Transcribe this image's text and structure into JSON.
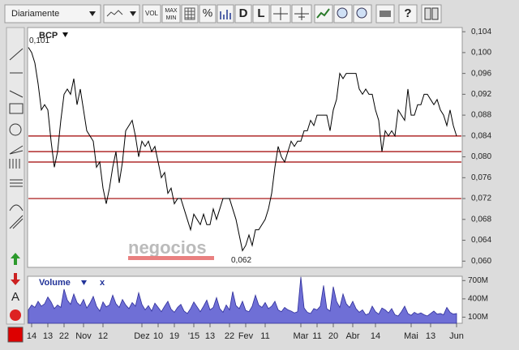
{
  "toolbar": {
    "period": "Diariamente",
    "vol": "VOL",
    "max": "MAX",
    "min": "MIN",
    "percent": "%",
    "d": "D",
    "l": "L",
    "help": "?"
  },
  "left_tools": {
    "text": "A"
  },
  "watermark": "negocios",
  "chart_data": [
    {
      "type": "line",
      "name": "BCP",
      "color": "#000000",
      "categories": [
        null,
        "14",
        null,
        null,
        null,
        null,
        "13",
        null,
        null,
        null,
        null,
        "22",
        null,
        null,
        null,
        null,
        null,
        "Nov",
        null,
        null,
        null,
        null,
        null,
        "12",
        null,
        null,
        null,
        null,
        null,
        null,
        null,
        null,
        null,
        null,
        null,
        "Dez",
        null,
        null,
        null,
        null,
        "10",
        null,
        null,
        null,
        null,
        "19",
        null,
        null,
        null,
        null,
        null,
        "'15",
        null,
        null,
        null,
        null,
        "13",
        null,
        null,
        null,
        null,
        null,
        "22",
        null,
        null,
        null,
        null,
        "Fev",
        null,
        null,
        null,
        null,
        null,
        "11",
        null,
        null,
        null,
        null,
        null,
        null,
        null,
        null,
        null,
        null,
        "Mar",
        null,
        null,
        null,
        null,
        "11",
        null,
        null,
        null,
        null,
        "20",
        null,
        null,
        null,
        null,
        null,
        "Abr",
        null,
        null,
        null,
        null,
        null,
        null,
        "14",
        null,
        null,
        null,
        null,
        null,
        null,
        null,
        null,
        null,
        null,
        "Mai",
        null,
        null,
        null,
        null,
        null,
        "13",
        null,
        null,
        null,
        null,
        null,
        null,
        null,
        "Jun"
      ],
      "values": [
        0.101,
        0.1,
        0.098,
        0.094,
        0.089,
        0.09,
        0.089,
        0.083,
        0.078,
        0.081,
        0.087,
        0.092,
        0.093,
        0.092,
        0.095,
        0.09,
        0.093,
        0.089,
        0.085,
        0.084,
        0.083,
        0.078,
        0.079,
        0.074,
        0.071,
        0.074,
        0.078,
        0.081,
        0.075,
        0.079,
        0.085,
        0.086,
        0.087,
        0.084,
        0.08,
        0.083,
        0.082,
        0.083,
        0.081,
        0.082,
        0.079,
        0.076,
        0.077,
        0.073,
        0.074,
        0.071,
        0.072,
        0.072,
        0.07,
        0.068,
        0.066,
        0.069,
        0.068,
        0.067,
        0.069,
        0.067,
        0.067,
        0.07,
        0.068,
        0.07,
        0.072,
        0.072,
        0.072,
        0.07,
        0.068,
        0.065,
        0.062,
        0.063,
        0.065,
        0.063,
        0.066,
        0.066,
        0.067,
        0.068,
        0.07,
        0.073,
        0.078,
        0.082,
        0.08,
        0.079,
        0.081,
        0.083,
        0.082,
        0.083,
        0.083,
        0.085,
        0.085,
        0.087,
        0.086,
        0.088,
        0.088,
        0.088,
        0.088,
        0.085,
        0.089,
        0.091,
        0.096,
        0.095,
        0.096,
        0.096,
        0.096,
        0.096,
        0.093,
        0.092,
        0.093,
        0.092,
        0.092,
        0.089,
        0.087,
        0.081,
        0.085,
        0.084,
        0.085,
        0.084,
        0.089,
        0.088,
        0.087,
        0.093,
        0.088,
        0.088,
        0.09,
        0.09,
        0.092,
        0.092,
        0.091,
        0.09,
        0.091,
        0.089,
        0.088,
        0.086,
        0.089,
        0.086,
        0.084
      ],
      "ylim": [
        0.0588,
        0.1048
      ],
      "yticks": [
        {
          "value": 0.06,
          "label": "0,060"
        },
        {
          "value": 0.064,
          "label": "0,064"
        },
        {
          "value": 0.068,
          "label": "0,068"
        },
        {
          "value": 0.072,
          "label": "0,072"
        },
        {
          "value": 0.076,
          "label": "0,076"
        },
        {
          "value": 0.08,
          "label": "0,080"
        },
        {
          "value": 0.084,
          "label": "0,084"
        },
        {
          "value": 0.088,
          "label": "0,088"
        },
        {
          "value": 0.092,
          "label": "0,092"
        },
        {
          "value": 0.096,
          "label": "0,096"
        },
        {
          "value": 0.1,
          "label": "0,100"
        },
        {
          "value": 0.104,
          "label": "0,104"
        }
      ],
      "hlines": [
        0.084,
        0.081,
        0.079,
        0.072
      ],
      "hline_color": "#a00000",
      "max_label": {
        "value": 0.101,
        "label": "0,101"
      },
      "min_label": {
        "value": 0.062,
        "label": "0,062"
      }
    },
    {
      "type": "area",
      "name": "Volume",
      "close": "x",
      "color": "#6f6fd6",
      "line_color": "#2e2e9a",
      "values": [
        220000000.0,
        300000000.0,
        260000000.0,
        360000000.0,
        280000000.0,
        320000000.0,
        430000000.0,
        350000000.0,
        240000000.0,
        300000000.0,
        260000000.0,
        560000000.0,
        380000000.0,
        310000000.0,
        480000000.0,
        340000000.0,
        290000000.0,
        390000000.0,
        250000000.0,
        330000000.0,
        440000000.0,
        280000000.0,
        200000000.0,
        350000000.0,
        270000000.0,
        300000000.0,
        460000000.0,
        320000000.0,
        260000000.0,
        390000000.0,
        300000000.0,
        240000000.0,
        340000000.0,
        280000000.0,
        500000000.0,
        310000000.0,
        220000000.0,
        290000000.0,
        200000000.0,
        330000000.0,
        260000000.0,
        190000000.0,
        280000000.0,
        360000000.0,
        230000000.0,
        180000000.0,
        260000000.0,
        310000000.0,
        200000000.0,
        160000000.0,
        240000000.0,
        350000000.0,
        270000000.0,
        190000000.0,
        280000000.0,
        380000000.0,
        220000000.0,
        260000000.0,
        420000000.0,
        240000000.0,
        180000000.0,
        300000000.0,
        220000000.0,
        520000000.0,
        290000000.0,
        240000000.0,
        360000000.0,
        210000000.0,
        190000000.0,
        280000000.0,
        460000000.0,
        300000000.0,
        260000000.0,
        340000000.0,
        240000000.0,
        280000000.0,
        360000000.0,
        220000000.0,
        190000000.0,
        260000000.0,
        220000000.0,
        200000000.0,
        170000000.0,
        190000000.0,
        760000000.0,
        250000000.0,
        180000000.0,
        160000000.0,
        240000000.0,
        220000000.0,
        280000000.0,
        620000000.0,
        240000000.0,
        200000000.0,
        600000000.0,
        360000000.0,
        260000000.0,
        480000000.0,
        320000000.0,
        260000000.0,
        360000000.0,
        240000000.0,
        180000000.0,
        220000000.0,
        140000000.0,
        160000000.0,
        280000000.0,
        190000000.0,
        150000000.0,
        250000000.0,
        220000000.0,
        170000000.0,
        240000000.0,
        140000000.0,
        120000000.0,
        190000000.0,
        280000000.0,
        160000000.0,
        130000000.0,
        180000000.0,
        150000000.0,
        170000000.0,
        140000000.0,
        120000000.0,
        160000000.0,
        200000000.0,
        150000000.0,
        160000000.0,
        140000000.0,
        260000000.0,
        180000000.0,
        150000000.0,
        160000000.0
      ],
      "ylim": [
        0,
        770000000
      ],
      "yticks": [
        {
          "value": 100000000,
          "label": "100M"
        },
        {
          "value": 400000000,
          "label": "400M"
        },
        {
          "value": 700000000,
          "label": "700M"
        }
      ]
    }
  ]
}
